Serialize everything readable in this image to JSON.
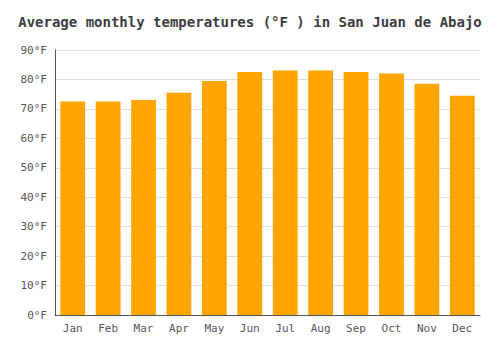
{
  "chart_data": {
    "type": "bar",
    "title": "Average monthly temperatures (°F ) in San Juan de Abajo",
    "categories": [
      "Jan",
      "Feb",
      "Mar",
      "Apr",
      "May",
      "Jun",
      "Jul",
      "Aug",
      "Sep",
      "Oct",
      "Nov",
      "Dec"
    ],
    "values": [
      72.5,
      72.5,
      73.0,
      75.5,
      79.5,
      82.5,
      83.0,
      83.0,
      82.5,
      82.0,
      78.5,
      74.5
    ],
    "color": "#FFA500",
    "ylim": [
      0,
      90
    ],
    "yticks": [
      {
        "value": 0,
        "label": "0°F"
      },
      {
        "value": 10,
        "label": "10°F"
      },
      {
        "value": 20,
        "label": "20°F"
      },
      {
        "value": 30,
        "label": "30°F"
      },
      {
        "value": 40,
        "label": "40°F"
      },
      {
        "value": 50,
        "label": "50°F"
      },
      {
        "value": 60,
        "label": "60°F"
      },
      {
        "value": 70,
        "label": "70°F"
      },
      {
        "value": 80,
        "label": "80°F"
      },
      {
        "value": 90,
        "label": "90°F"
      }
    ],
    "grid": true
  }
}
